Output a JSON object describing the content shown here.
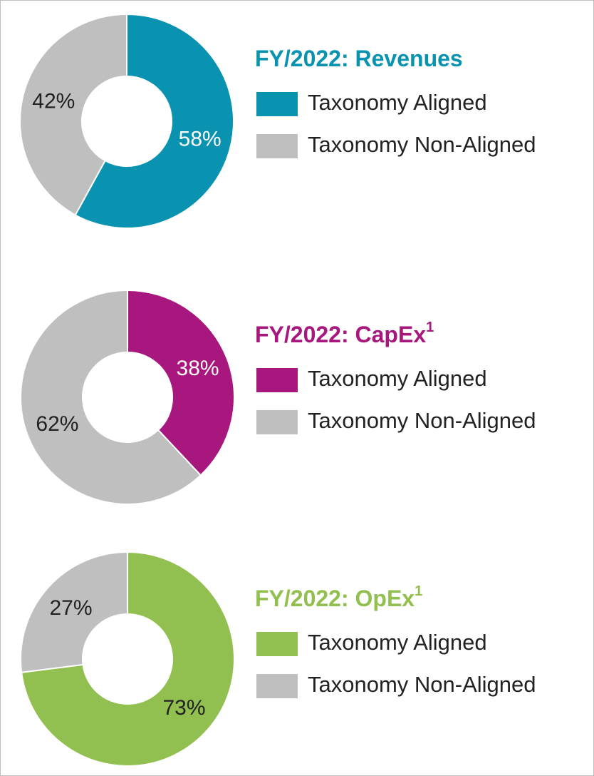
{
  "chart_data": [
    {
      "type": "pie",
      "title": "FY/2022: Revenues",
      "title_color": "#0a93b0",
      "categories": [
        "Taxonomy Aligned",
        "Taxonomy Non-Aligned"
      ],
      "values": [
        58,
        42
      ],
      "value_labels": [
        "58%",
        "42%"
      ],
      "colors": [
        "#0a93b0",
        "#bfbfbf"
      ],
      "label_colors": [
        "#ffffff",
        "#222222"
      ]
    },
    {
      "type": "pie",
      "title": "FY/2022: CapEx",
      "title_note": "1",
      "title_color": "#a8177e",
      "categories": [
        "Taxonomy Aligned",
        "Taxonomy Non-Aligned"
      ],
      "values": [
        38,
        62
      ],
      "value_labels": [
        "38%",
        "62%"
      ],
      "colors": [
        "#a8177e",
        "#bfbfbf"
      ],
      "label_colors": [
        "#ffffff",
        "#222222"
      ]
    },
    {
      "type": "pie",
      "title": "FY/2022: OpEx",
      "title_note": "1",
      "title_color": "#92c050",
      "categories": [
        "Taxonomy Aligned",
        "Taxonomy Non-Aligned"
      ],
      "values": [
        73,
        27
      ],
      "value_labels": [
        "73%",
        "27%"
      ],
      "colors": [
        "#92c050",
        "#bfbfbf"
      ],
      "label_colors": [
        "#222222",
        "#222222"
      ]
    }
  ]
}
